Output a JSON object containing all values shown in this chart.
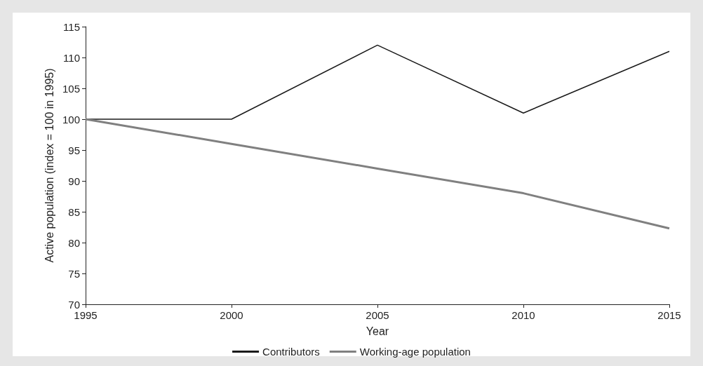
{
  "chart_data": {
    "type": "line",
    "xlabel": "Year",
    "ylabel": "Active population (index = 100 in 1995)",
    "x": [
      1995,
      2000,
      2005,
      2010,
      2015
    ],
    "series": [
      {
        "name": "Contributors",
        "color": "#1a1a1a",
        "values": [
          100,
          100,
          112,
          101,
          111
        ]
      },
      {
        "name": "Working-age population",
        "color": "#808080",
        "values": [
          100,
          96,
          92,
          88,
          82.3
        ]
      }
    ],
    "xlim": [
      1995,
      2015
    ],
    "xticks": [
      1995,
      2000,
      2005,
      2010,
      2015
    ],
    "ylim": [
      70,
      115
    ],
    "yticks": [
      70,
      75,
      80,
      85,
      90,
      95,
      100,
      105,
      110,
      115
    ],
    "grid": false,
    "legend": "bottom",
    "marker": "none",
    "line_style": "solid"
  }
}
